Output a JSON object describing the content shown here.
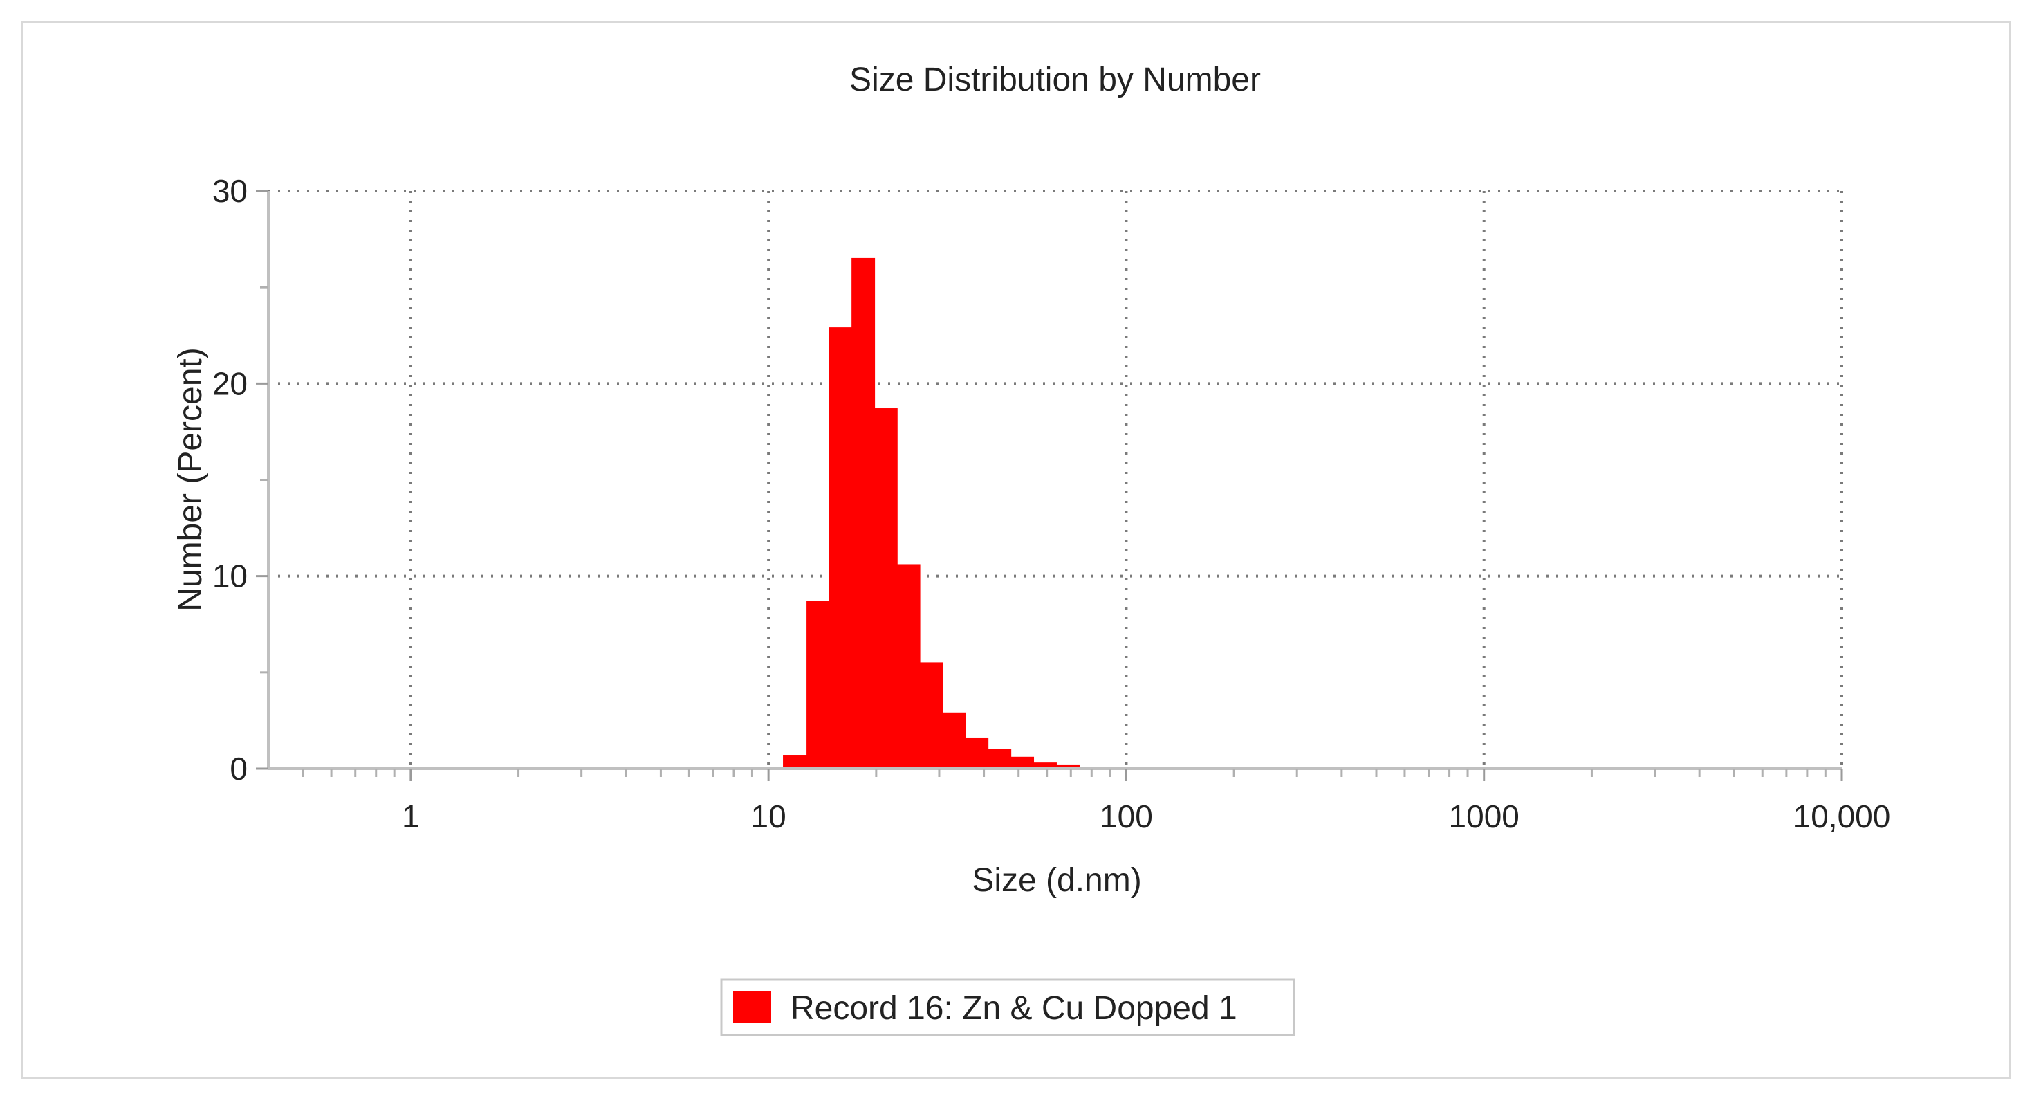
{
  "chart_data": {
    "type": "bar",
    "title": "Size Distribution by Number",
    "xlabel": "Size (d.nm)",
    "ylabel": "Number (Percent)",
    "x_scale": "log",
    "xlim": [
      0.4,
      10000
    ],
    "ylim": [
      0,
      30
    ],
    "x_ticks": [
      {
        "value": 1,
        "label": "1"
      },
      {
        "value": 10,
        "label": "10"
      },
      {
        "value": 100,
        "label": "100"
      },
      {
        "value": 1000,
        "label": "1000"
      },
      {
        "value": 10000,
        "label": "10,000"
      }
    ],
    "y_ticks": [
      {
        "value": 0,
        "label": "0"
      },
      {
        "value": 10,
        "label": "10"
      },
      {
        "value": 20,
        "label": "20"
      },
      {
        "value": 30,
        "label": "30"
      }
    ],
    "grid": true,
    "legend_position": "bottom-center",
    "series": [
      {
        "name": "Record 16: Zn & Cu Dopped 1",
        "color": "#ff0000",
        "bins": [
          {
            "x_start": 11.0,
            "x_end": 12.8,
            "value": 0.7
          },
          {
            "x_start": 12.8,
            "x_end": 14.8,
            "value": 8.7
          },
          {
            "x_start": 14.8,
            "x_end": 17.1,
            "value": 22.9
          },
          {
            "x_start": 17.1,
            "x_end": 19.8,
            "value": 26.5
          },
          {
            "x_start": 19.8,
            "x_end": 22.9,
            "value": 18.7
          },
          {
            "x_start": 22.9,
            "x_end": 26.5,
            "value": 10.6
          },
          {
            "x_start": 26.5,
            "x_end": 30.7,
            "value": 5.5
          },
          {
            "x_start": 30.7,
            "x_end": 35.5,
            "value": 2.9
          },
          {
            "x_start": 35.5,
            "x_end": 41.1,
            "value": 1.6
          },
          {
            "x_start": 41.1,
            "x_end": 47.6,
            "value": 1.0
          },
          {
            "x_start": 47.6,
            "x_end": 55.1,
            "value": 0.6
          },
          {
            "x_start": 55.1,
            "x_end": 63.8,
            "value": 0.3
          },
          {
            "x_start": 63.8,
            "x_end": 73.9,
            "value": 0.2
          }
        ]
      }
    ]
  }
}
